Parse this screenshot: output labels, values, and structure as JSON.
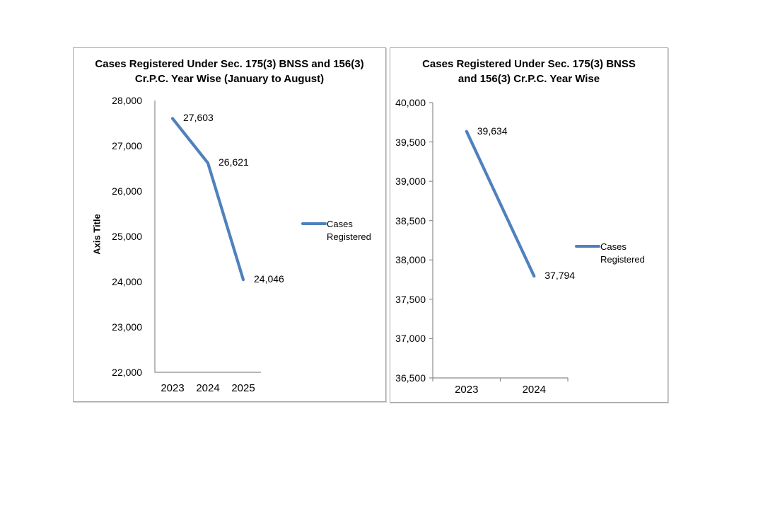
{
  "colors": {
    "series_line": "#4F81BD",
    "axis_line": "#8C8C8C",
    "panel_border": "#A6A6A6",
    "text": "#000000",
    "background": "#FFFFFF"
  },
  "chart_data": [
    {
      "type": "line",
      "title": "Cases Registered Under Sec. 175(3) BNSS and 156(3) Cr.P.C. Year Wise (January to August)",
      "title_lines": [
        "Cases Registered Under Sec. 175(3) BNSS and 156(3)",
        "Cr.P.C. Year Wise (January to August)"
      ],
      "xlabel": "",
      "ylabel": "Axis Title",
      "categories": [
        "2023",
        "2024",
        "2025"
      ],
      "series": [
        {
          "name": "Cases Registered",
          "values": [
            27603,
            26621,
            24046
          ]
        }
      ],
      "data_labels": [
        "27,603",
        "26,621",
        "24,046"
      ],
      "ylim": [
        22000,
        28000
      ],
      "ytick_step": 1000,
      "ytick_labels": [
        "28,000",
        "27,000",
        "26,000",
        "25,000",
        "24,000",
        "23,000",
        "22,000"
      ],
      "grid": false,
      "legend_position": "right",
      "legend_lines": [
        "Cases",
        "Registered"
      ]
    },
    {
      "type": "line",
      "title": "Cases Registered Under Sec. 175(3) BNSS and 156(3) Cr.P.C. Year Wise",
      "title_lines": [
        "Cases Registered Under Sec. 175(3) BNSS",
        "and 156(3) Cr.P.C. Year Wise"
      ],
      "xlabel": "",
      "ylabel": "",
      "categories": [
        "2023",
        "2024"
      ],
      "series": [
        {
          "name": "Cases Registered",
          "values": [
            39634,
            37794
          ]
        }
      ],
      "data_labels": [
        "39,634",
        "37,794"
      ],
      "ylim": [
        36500,
        40000
      ],
      "ytick_step": 500,
      "ytick_labels": [
        "40,000",
        "39,500",
        "39,000",
        "38,500",
        "38,000",
        "37,500",
        "37,000",
        "36,500"
      ],
      "grid": false,
      "legend_position": "right",
      "legend_lines": [
        "Cases",
        "Registered"
      ]
    }
  ]
}
